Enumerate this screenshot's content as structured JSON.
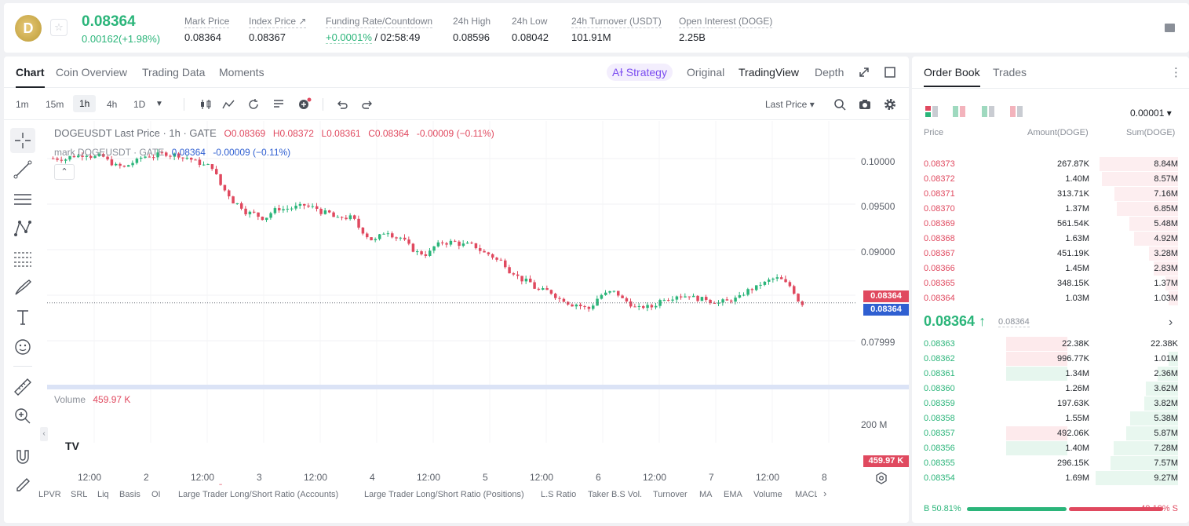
{
  "colors": {
    "up": "#2bb57a",
    "down": "#e0495f",
    "accent": "#7b4cf0"
  },
  "header": {
    "logo_glyph": "D",
    "star_icon": "☆",
    "price": "0.08364",
    "change": "0.00162(+1.98%)",
    "stats": [
      {
        "label": "Mark Price",
        "value": "0.08364"
      },
      {
        "label": "Index Price ↗",
        "value": "0.08367"
      },
      {
        "label": "Funding Rate/Countdown",
        "value": "/ 02:58:49",
        "value_accent": "+0.0001%"
      },
      {
        "label": "24h High",
        "value": "0.08596"
      },
      {
        "label": "24h Low",
        "value": "0.08042"
      },
      {
        "label": "24h Turnover (USDT)",
        "value": "101.91M"
      },
      {
        "label": "Open Interest (DOGE)",
        "value": "2.25B"
      }
    ]
  },
  "chart_tabs": [
    "Chart",
    "Coin Overview",
    "Trading Data",
    "Moments"
  ],
  "view_tabs": {
    "strategy": "Aɫ Strategy",
    "original": "Original",
    "tradingview": "TradingView",
    "depth": "Depth"
  },
  "timeframes": [
    "1m",
    "15m",
    "1h",
    "4h",
    "1D"
  ],
  "active_timeframe": "1h",
  "price_type": "Last Price ▾",
  "legend": {
    "title": "DOGEUSDT Last Price · 1h · GATE",
    "o": "O0.08369",
    "h": "H0.08372",
    "l": "L0.08361",
    "c": "C0.08364",
    "chg": "-0.00009 (−0.11%)"
  },
  "legend2": {
    "label": "mark  DOGEUSDT · GATE",
    "value": "0.08364",
    "chg": "-0.00009 (−0.11%)"
  },
  "volume": {
    "label": "Volume",
    "value": "459.97 K"
  },
  "price_tags": {
    "last": "0.08364",
    "mark": "0.08364",
    "volume": "459.97 K"
  },
  "chart_data": {
    "type": "candlestick",
    "ylabels": [
      "0.10000",
      "0.09500",
      "0.09000",
      "0.08500",
      "0.07999"
    ],
    "vol_axis": "200 M",
    "xlabels": [
      "12:00",
      "2",
      "12:00",
      "3",
      "12:00",
      "4",
      "12:00",
      "5",
      "12:00",
      "6",
      "12:00",
      "7",
      "12:00",
      "8"
    ],
    "series": [
      {
        "name": "close",
        "values": [
          0.0995,
          0.0998,
          0.1,
          0.0997,
          0.099,
          0.0985,
          0.0992,
          0.0998,
          0.1,
          0.0999,
          0.0996,
          0.099,
          0.0986,
          0.096,
          0.0945,
          0.0935,
          0.093,
          0.0938,
          0.094,
          0.0942,
          0.0941,
          0.0935,
          0.0928,
          0.093,
          0.0915,
          0.0905,
          0.0915,
          0.0908,
          0.0895,
          0.089,
          0.09,
          0.0903,
          0.09,
          0.0898,
          0.089,
          0.0882,
          0.087,
          0.086,
          0.085,
          0.0848,
          0.084,
          0.0835,
          0.083,
          0.0845,
          0.0848,
          0.0838,
          0.083,
          0.0832,
          0.0842,
          0.0845,
          0.0845,
          0.084,
          0.0838,
          0.0838,
          0.0842,
          0.0852,
          0.0858,
          0.0863,
          0.0855,
          0.0836
        ]
      }
    ]
  },
  "indicators": [
    "LPVR",
    "SRL",
    "Liq",
    "Basis",
    "OI",
    "Large Trader Long/Short Ratio (Accounts)",
    "Large Trader Long/Short Ratio (Positions)",
    "L.S Ratio",
    "Taker B.S Vol.",
    "Turnover",
    "MA",
    "EMA",
    "Volume",
    "MACL"
  ],
  "order_book": {
    "tabs": [
      "Order Book",
      "Trades"
    ],
    "precision": "0.00001 ▾",
    "headers": {
      "price": "Price",
      "amount": "Amount(DOGE)",
      "sum": "Sum(DOGE)"
    },
    "asks": [
      {
        "price": "0.08373",
        "amount": "267.87K",
        "sum": "8.84M",
        "depth": 0.95,
        "hl": 0
      },
      {
        "price": "0.08372",
        "amount": "1.40M",
        "sum": "8.57M",
        "depth": 0.92,
        "hl": 0
      },
      {
        "price": "0.08371",
        "amount": "313.71K",
        "sum": "7.16M",
        "depth": 0.77,
        "hl": 0
      },
      {
        "price": "0.08370",
        "amount": "1.37M",
        "sum": "6.85M",
        "depth": 0.74,
        "hl": 0
      },
      {
        "price": "0.08369",
        "amount": "561.54K",
        "sum": "5.48M",
        "depth": 0.59,
        "hl": 0
      },
      {
        "price": "0.08368",
        "amount": "1.63M",
        "sum": "4.92M",
        "depth": 0.53,
        "hl": 0
      },
      {
        "price": "0.08367",
        "amount": "451.19K",
        "sum": "3.28M",
        "depth": 0.35,
        "hl": 0
      },
      {
        "price": "0.08366",
        "amount": "1.45M",
        "sum": "2.83M",
        "depth": 0.3,
        "hl": 0
      },
      {
        "price": "0.08365",
        "amount": "348.15K",
        "sum": "1.37M",
        "depth": 0.15,
        "hl": 0
      },
      {
        "price": "0.08364",
        "amount": "1.03M",
        "sum": "1.03M",
        "depth": 0.11,
        "hl": 0
      }
    ],
    "mid": {
      "price": "0.08364 ↑",
      "mark": "0.08364"
    },
    "bids": [
      {
        "price": "0.08363",
        "amount": "22.38K",
        "sum": "22.38K",
        "depth": 0.0,
        "hl": 1,
        "side": "ask"
      },
      {
        "price": "0.08362",
        "amount": "996.77K",
        "sum": "1.01M",
        "depth": 0.11,
        "hl": 1,
        "side": "ask"
      },
      {
        "price": "0.08361",
        "amount": "1.34M",
        "sum": "2.36M",
        "depth": 0.25,
        "hl": 1,
        "side": "bid"
      },
      {
        "price": "0.08360",
        "amount": "1.26M",
        "sum": "3.62M",
        "depth": 0.39,
        "hl": 0
      },
      {
        "price": "0.08359",
        "amount": "197.63K",
        "sum": "3.82M",
        "depth": 0.41,
        "hl": 0
      },
      {
        "price": "0.08358",
        "amount": "1.55M",
        "sum": "5.38M",
        "depth": 0.58,
        "hl": 0
      },
      {
        "price": "0.08357",
        "amount": "492.06K",
        "sum": "5.87M",
        "depth": 0.63,
        "hl": 1,
        "side": "ask"
      },
      {
        "price": "0.08356",
        "amount": "1.40M",
        "sum": "7.28M",
        "depth": 0.78,
        "hl": 1,
        "side": "bid"
      },
      {
        "price": "0.08355",
        "amount": "296.15K",
        "sum": "7.57M",
        "depth": 0.82,
        "hl": 0
      },
      {
        "price": "0.08354",
        "amount": "1.69M",
        "sum": "9.27M",
        "depth": 1.0,
        "hl": 0
      }
    ],
    "ratio": {
      "buy": "B 50.81%",
      "sell": "49.19% S",
      "buy_frac": 0.5081
    }
  }
}
